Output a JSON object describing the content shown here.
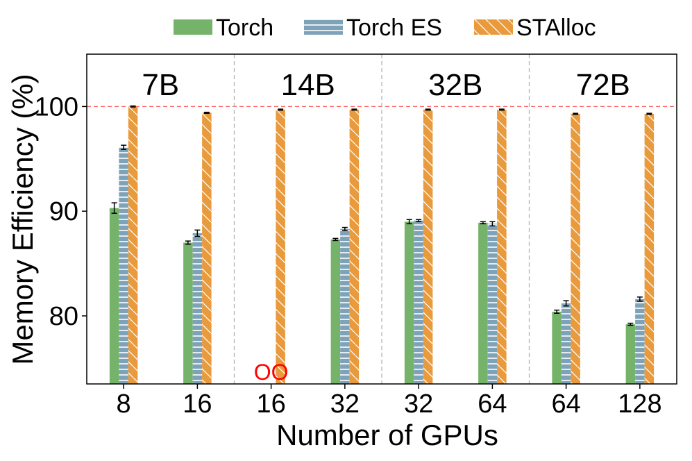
{
  "chart_data": {
    "type": "bar",
    "title": "",
    "xlabel": "Number of GPUs",
    "ylabel": "Memory Efficiency (%)",
    "ylim": [
      73.5,
      105
    ],
    "yticks": [
      80,
      90,
      100
    ],
    "reference_line": 100,
    "legend": {
      "placement": "top",
      "entries": [
        "Torch",
        "Torch ES",
        "STAlloc"
      ]
    },
    "groups": [
      "7B",
      "14B",
      "32B",
      "72B"
    ],
    "categories": [
      "8",
      "16",
      "16",
      "32",
      "32",
      "64",
      "64",
      "128"
    ],
    "category_group": [
      0,
      0,
      1,
      1,
      2,
      2,
      3,
      3
    ],
    "series": [
      {
        "name": "Torch",
        "color": "#76b36a",
        "pattern": "solid",
        "values": [
          90.3,
          87.0,
          null,
          87.3,
          89.0,
          88.9,
          80.4,
          79.2
        ],
        "errors": [
          0.5,
          0.15,
          null,
          0.1,
          0.2,
          0.1,
          0.15,
          0.1
        ]
      },
      {
        "name": "Torch ES",
        "color": "#7ea3b8",
        "pattern": "horizontal",
        "values": [
          96.1,
          87.9,
          null,
          88.3,
          89.1,
          88.8,
          81.2,
          81.6
        ],
        "errors": [
          0.2,
          0.3,
          null,
          0.15,
          0.1,
          0.2,
          0.25,
          0.2
        ]
      },
      {
        "name": "STAlloc",
        "color": "#e89a3c",
        "pattern": "diagonal",
        "values": [
          100.0,
          99.4,
          99.7,
          99.7,
          99.7,
          99.7,
          99.3,
          99.3
        ],
        "errors": [
          0.05,
          0.05,
          0.05,
          0.05,
          0.05,
          0.05,
          0.05,
          0.05
        ]
      }
    ],
    "annotations": [
      {
        "text": "OO",
        "category_index": 2,
        "meaning": "out of memory"
      }
    ]
  }
}
